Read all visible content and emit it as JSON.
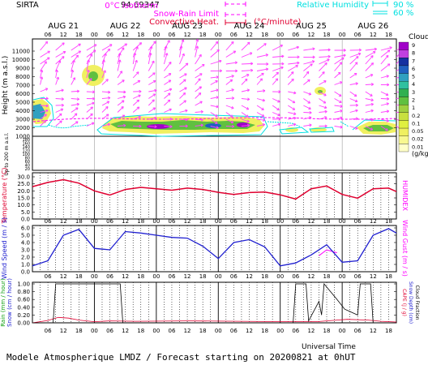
{
  "header": {
    "station": "SIRTA",
    "coord": "94.69347",
    "isotherm": "0°C isotherm",
    "snow_rain": "Snow-Rain Limit",
    "convective": "Convective Heat.",
    "convective_unit": "(°C/minute)",
    "rh_label": "Relative Humidity",
    "rh_90": "90 %",
    "rh_60": "60 %"
  },
  "footer": {
    "universal_time": "Universal Time",
    "model_line": "Modele Atmospherique LMDZ / Forecast starting on 20200821 at 0hUT"
  },
  "time_axis": {
    "days": [
      "AUG 21",
      "AUG 22",
      "AUG 23",
      "AUG 24",
      "AUG 25",
      "AUG 26"
    ],
    "hours": [
      "06",
      "12",
      "18",
      "00",
      "06",
      "12",
      "18",
      "00",
      "06",
      "12",
      "18",
      "00",
      "06",
      "12",
      "18",
      "00",
      "06",
      "12",
      "18",
      "00",
      "06",
      "12",
      "18"
    ]
  },
  "panels": {
    "clouds": {
      "ylabel_main": "Height (m a.s.l.)",
      "ylabel_low": "Up to 200 m a.s.l.",
      "yticks_upper": [
        "11000",
        "10000",
        "9000",
        "8000",
        "7000",
        "6000",
        "5000",
        "4000",
        "3000",
        "2000",
        "1000"
      ],
      "yticks_lower": [
        "180",
        "160",
        "140",
        "120",
        "100",
        "80",
        "60",
        "40",
        "20"
      ],
      "legend_title": "Clouds",
      "legend_unit": "(g/kg)",
      "legend_ticks": [
        "9",
        "8",
        "7",
        "6",
        "5",
        "4",
        "3",
        "2",
        "1",
        "0.2",
        "0.1",
        "0.05",
        "0.02",
        "0.01"
      ],
      "legend_colors": [
        "#a000c8",
        "#c040e0",
        "#1530a0",
        "#2060c0",
        "#30a0c0",
        "#30c0a0",
        "#30b050",
        "#60c040",
        "#a0d040",
        "#c8e040",
        "#e0f040",
        "#f0f060",
        "#f8f890",
        "#ffffc8"
      ]
    },
    "temperature": {
      "ylabel": "Temperature (°C)",
      "ylabel_right": "HUMIDEX",
      "yticks": [
        "30.0",
        "25.0",
        "20.0",
        "15.0",
        "10.0",
        "5.0",
        "0.0"
      ]
    },
    "wind": {
      "ylabel": "Wind Speed (m / s)",
      "ylabel_right": "Wind Gust (m / s)",
      "yticks": [
        "6.0",
        "5.0",
        "4.0",
        "3.0",
        "2.0",
        "1.0",
        "0.0"
      ]
    },
    "precip": {
      "ylabel_a": "Rain (mm / hour)",
      "ylabel_b": "Snow (cm / hour)",
      "ylabel_r1": "CAPE (J / g)",
      "ylabel_r2": "Snow Depth (cm)",
      "ylabel_r3": "Cloud Fraction",
      "yticks": [
        "1.00",
        "0.80",
        "0.60",
        "0.40",
        "0.20",
        "0.00"
      ]
    }
  },
  "colors": {
    "magenta": "#ff00ff",
    "cyan": "#00e0e0",
    "red": "#e00030",
    "blue": "#2020d0",
    "black": "#000000"
  },
  "chart_data": [
    {
      "type": "line",
      "name": "Temperature",
      "x_hours": [
        0,
        6,
        12,
        18,
        24,
        30,
        36,
        42,
        48,
        54,
        60,
        66,
        72,
        78,
        84,
        90,
        96,
        102,
        108,
        114,
        120,
        126,
        132,
        138,
        141
      ],
      "y": [
        23,
        26,
        28,
        25.5,
        20,
        17,
        21,
        22.5,
        21.5,
        20.5,
        22,
        21,
        19,
        17.5,
        18.8,
        19.2,
        17.2,
        14.2,
        21.5,
        23.5,
        17.5,
        14.8,
        21.5,
        22,
        19.5
      ],
      "ylim": [
        0,
        30
      ]
    },
    {
      "type": "line",
      "name": "Wind Speed",
      "x_hours": [
        0,
        6,
        12,
        18,
        24,
        30,
        36,
        42,
        48,
        54,
        60,
        66,
        72,
        78,
        84,
        90,
        96,
        102,
        108,
        114,
        120,
        126,
        132,
        138,
        141
      ],
      "y": [
        0.8,
        1.5,
        5.0,
        5.8,
        3.2,
        3.0,
        5.5,
        5.3,
        5.0,
        4.7,
        4.6,
        3.5,
        1.8,
        4.0,
        4.4,
        3.4,
        0.8,
        1.2,
        2.3,
        3.7,
        1.3,
        1.5,
        5.0,
        5.9,
        5.3
      ],
      "ylim": [
        0,
        6
      ]
    },
    {
      "type": "line",
      "name": "Wind Gust",
      "x_hours": [
        111,
        114,
        118
      ],
      "y": [
        2.2,
        3.0,
        2.6
      ],
      "ylim": [
        0,
        6
      ]
    },
    {
      "type": "line",
      "name": "Rain",
      "x_hours": [
        0,
        6,
        10,
        14,
        18,
        24,
        30,
        40,
        60,
        80,
        100,
        110,
        116,
        122,
        130,
        135,
        141
      ],
      "y": [
        0,
        0.06,
        0.14,
        0.12,
        0.07,
        0.03,
        0.05,
        0.04,
        0.05,
        0.04,
        0.03,
        0.03,
        0.06,
        0.09,
        0.07,
        0.04,
        0.02
      ],
      "ylim": [
        0,
        1
      ]
    },
    {
      "type": "line",
      "name": "Cloud Fraction",
      "x_hours": [
        0,
        8,
        9,
        34,
        35,
        101,
        102,
        106,
        107,
        111,
        112,
        113,
        118,
        121,
        126,
        127,
        131,
        132,
        141
      ],
      "y": [
        0,
        0,
        1,
        1,
        0,
        0,
        1,
        1,
        0.05,
        0.55,
        0.2,
        1,
        0.6,
        0.35,
        0.2,
        1,
        1,
        0,
        0
      ],
      "ylim": [
        0,
        1
      ]
    }
  ]
}
